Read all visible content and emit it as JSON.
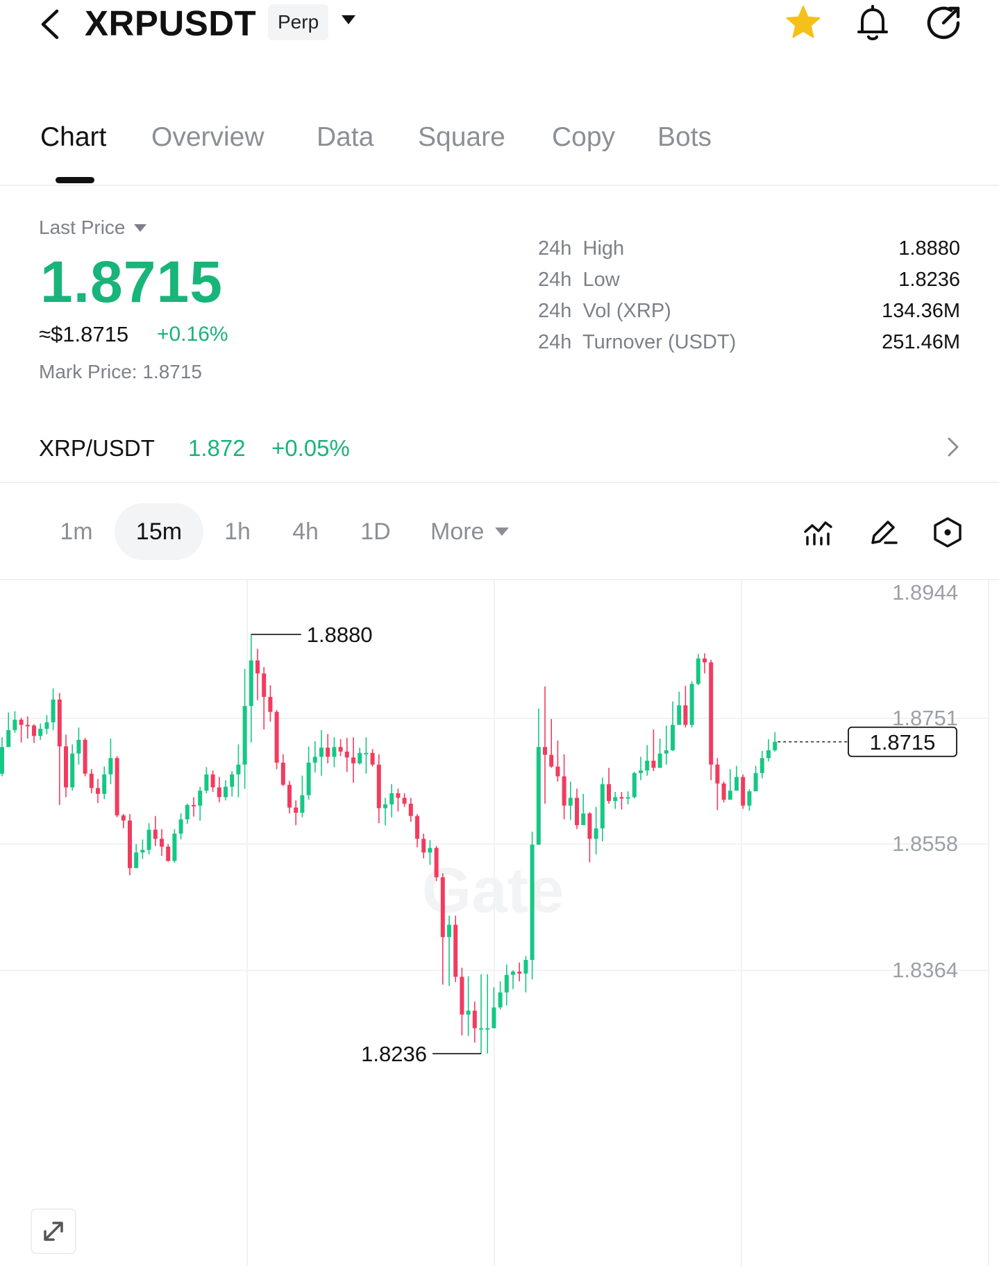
{
  "header": {
    "title": "XRPUSDT",
    "contract_type": "Perp",
    "icons": [
      "back-icon",
      "star-icon",
      "bell-icon",
      "share-icon"
    ],
    "favorite_color": "#f5c01a"
  },
  "tabs": [
    "Chart",
    "Overview",
    "Data",
    "Square",
    "Copy",
    "Bots"
  ],
  "active_tab": "Chart",
  "price": {
    "label": "Last Price",
    "last": "1.8715",
    "usd": "≈$1.8715",
    "change_pct": "+0.16%",
    "mark_label": "Mark Price:",
    "mark_value": "1.8715"
  },
  "stats": [
    {
      "label": "24h  High",
      "value": "1.8880"
    },
    {
      "label": "24h  Low",
      "value": "1.8236"
    },
    {
      "label": "24h  Vol (XRP)",
      "value": "134.36M"
    },
    {
      "label": "24h  Turnover (USDT)",
      "value": "251.46M"
    }
  ],
  "spot": {
    "pair": "XRP/USDT",
    "price": "1.872",
    "change": "+0.05%"
  },
  "intervals": [
    "1m",
    "15m",
    "1h",
    "4h",
    "1D"
  ],
  "active_interval": "15m",
  "more_label": "More",
  "toolbar_icons": [
    "indicator-icon",
    "draw-icon",
    "settings-icon"
  ],
  "colors": {
    "up": "#18b47a",
    "down": "#f0325a",
    "candle_up": "#16c784",
    "candle_down": "#f23b5f"
  },
  "watermark": "Gate",
  "chart_data": {
    "type": "candlestick",
    "y_ticks": [
      "1.8944",
      "1.8751",
      "1.8558",
      "1.8364"
    ],
    "y_tick_values": [
      1.8944,
      1.8751,
      1.8558,
      1.8364
    ],
    "current_price": "1.8715",
    "current_price_value": 1.8715,
    "high_label": "1.8880",
    "high_value": 1.888,
    "low_label": "1.8236",
    "low_value": 1.8236,
    "candles": [
      [
        1.8666,
        1.8707,
        1.8722,
        1.8662
      ],
      [
        1.8707,
        1.8733,
        1.876,
        1.8707
      ],
      [
        1.8733,
        1.8749,
        1.8762,
        1.8729
      ],
      [
        1.8749,
        1.8741,
        1.8752,
        1.8714
      ],
      [
        1.8741,
        1.874,
        1.8754,
        1.872
      ],
      [
        1.874,
        1.8724,
        1.8742,
        1.8713
      ],
      [
        1.8724,
        1.8735,
        1.8743,
        1.8718
      ],
      [
        1.8735,
        1.8745,
        1.8756,
        1.8727
      ],
      [
        1.8745,
        1.878,
        1.8797,
        1.8733
      ],
      [
        1.878,
        1.8708,
        1.879,
        1.8618
      ],
      [
        1.8708,
        1.8645,
        1.8726,
        1.863
      ],
      [
        1.8645,
        1.8697,
        1.8711,
        1.864
      ],
      [
        1.8697,
        1.8718,
        1.8737,
        1.868
      ],
      [
        1.8718,
        1.8666,
        1.8721,
        1.8662
      ],
      [
        1.8666,
        1.8644,
        1.8673,
        1.8636
      ],
      [
        1.8644,
        1.8635,
        1.8658,
        1.8621
      ],
      [
        1.8635,
        1.8665,
        1.8677,
        1.8627
      ],
      [
        1.8665,
        1.869,
        1.872,
        1.865
      ],
      [
        1.869,
        1.8602,
        1.8693,
        1.8599
      ],
      [
        1.8602,
        1.8594,
        1.8604,
        1.8582
      ],
      [
        1.8594,
        1.8521,
        1.8604,
        1.851
      ],
      [
        1.8521,
        1.8545,
        1.8558,
        1.8524
      ],
      [
        1.8545,
        1.8549,
        1.8565,
        1.8535
      ],
      [
        1.8549,
        1.858,
        1.859,
        1.8542
      ],
      [
        1.858,
        1.8566,
        1.8601,
        1.8555
      ],
      [
        1.8566,
        1.8554,
        1.8581,
        1.854
      ],
      [
        1.8554,
        1.8532,
        1.8558,
        1.8531
      ],
      [
        1.8532,
        1.8574,
        1.8581,
        1.8529
      ],
      [
        1.8574,
        1.8596,
        1.8605,
        1.8565
      ],
      [
        1.8596,
        1.8618,
        1.862,
        1.8589
      ],
      [
        1.8618,
        1.8617,
        1.863,
        1.86
      ],
      [
        1.8617,
        1.864,
        1.8646,
        1.8594
      ],
      [
        1.864,
        1.8665,
        1.8676,
        1.8636
      ],
      [
        1.8665,
        1.8645,
        1.8671,
        1.8638
      ],
      [
        1.8645,
        1.863,
        1.8661,
        1.8622
      ],
      [
        1.863,
        1.8646,
        1.8656,
        1.8625
      ],
      [
        1.8646,
        1.8665,
        1.867,
        1.8631
      ],
      [
        1.8665,
        1.868,
        1.8711,
        1.863
      ],
      [
        1.868,
        1.877,
        1.8827,
        1.8643
      ],
      [
        1.877,
        1.884,
        1.888,
        1.8714
      ],
      [
        1.884,
        1.882,
        1.8858,
        1.8779
      ],
      [
        1.882,
        1.8784,
        1.883,
        1.8734
      ],
      [
        1.8784,
        1.8761,
        1.8802,
        1.8746
      ],
      [
        1.8761,
        1.8683,
        1.8764,
        1.8673
      ],
      [
        1.8683,
        1.8649,
        1.8696,
        1.8647
      ],
      [
        1.8649,
        1.8614,
        1.8655,
        1.8605
      ],
      [
        1.8614,
        1.8606,
        1.8625,
        1.8587
      ],
      [
        1.8606,
        1.8633,
        1.8663,
        1.8599
      ],
      [
        1.8633,
        1.8683,
        1.8708,
        1.8626
      ],
      [
        1.8683,
        1.8692,
        1.8716,
        1.8668
      ],
      [
        1.8692,
        1.8706,
        1.8733,
        1.8663
      ],
      [
        1.8706,
        1.8692,
        1.8727,
        1.8682
      ],
      [
        1.8692,
        1.8707,
        1.8722,
        1.8676
      ],
      [
        1.8707,
        1.87,
        1.8719,
        1.8693
      ],
      [
        1.87,
        1.8691,
        1.8721,
        1.8669
      ],
      [
        1.8691,
        1.8682,
        1.8722,
        1.8652
      ],
      [
        1.8682,
        1.8698,
        1.8706,
        1.868
      ],
      [
        1.8698,
        1.8698,
        1.8722,
        1.8666
      ],
      [
        1.8698,
        1.868,
        1.8704,
        1.8677
      ],
      [
        1.868,
        1.8613,
        1.8696,
        1.859
      ],
      [
        1.8613,
        1.8619,
        1.8629,
        1.8587
      ],
      [
        1.8619,
        1.8636,
        1.865,
        1.8599
      ],
      [
        1.8636,
        1.8629,
        1.8643,
        1.8608
      ],
      [
        1.8629,
        1.862,
        1.8636,
        1.8615
      ],
      [
        1.862,
        1.8601,
        1.8629,
        1.8592
      ],
      [
        1.8601,
        1.8566,
        1.8604,
        1.8553
      ],
      [
        1.8566,
        1.8545,
        1.8574,
        1.8536
      ],
      [
        1.8545,
        1.8552,
        1.8564,
        1.8526
      ],
      [
        1.8552,
        1.8507,
        1.8555,
        1.8501
      ],
      [
        1.8507,
        1.8415,
        1.8513,
        1.8342
      ],
      [
        1.8415,
        1.8434,
        1.8448,
        1.834
      ],
      [
        1.8434,
        1.8354,
        1.8448,
        1.8346
      ],
      [
        1.8354,
        1.8296,
        1.8368,
        1.8264
      ],
      [
        1.8296,
        1.8302,
        1.8355,
        1.8263
      ],
      [
        1.8302,
        1.8275,
        1.8316,
        1.8253
      ],
      [
        1.8275,
        1.8275,
        1.8358,
        1.8236
      ],
      [
        1.8275,
        1.8275,
        1.8358,
        1.8236
      ],
      [
        1.8275,
        1.8307,
        1.8338,
        1.8275
      ],
      [
        1.8307,
        1.833,
        1.8347,
        1.8304
      ],
      [
        1.833,
        1.8357,
        1.8373,
        1.831
      ],
      [
        1.8357,
        1.8362,
        1.8364,
        1.8335
      ],
      [
        1.8362,
        1.8359,
        1.8376,
        1.8347
      ],
      [
        1.8359,
        1.838,
        1.8386,
        1.833
      ],
      [
        1.838,
        1.8557,
        1.8577,
        1.835
      ],
      [
        1.8557,
        1.8707,
        1.8766,
        1.8557
      ],
      [
        1.8707,
        1.8695,
        1.88,
        1.862
      ],
      [
        1.8695,
        1.8677,
        1.875,
        1.8675
      ],
      [
        1.8677,
        1.8662,
        1.8717,
        1.8654
      ],
      [
        1.8662,
        1.8617,
        1.8696,
        1.8596
      ],
      [
        1.8617,
        1.8629,
        1.8654,
        1.8595
      ],
      [
        1.8629,
        1.8587,
        1.8643,
        1.8581
      ],
      [
        1.8587,
        1.8605,
        1.8635,
        1.8602
      ],
      [
        1.8605,
        1.8566,
        1.8607,
        1.853
      ],
      [
        1.8566,
        1.8582,
        1.8615,
        1.8542
      ],
      [
        1.8582,
        1.865,
        1.866,
        1.8562
      ],
      [
        1.865,
        1.8624,
        1.8675,
        1.862
      ],
      [
        1.8624,
        1.863,
        1.8638,
        1.8612
      ],
      [
        1.863,
        1.8628,
        1.8638,
        1.8611
      ],
      [
        1.8628,
        1.863,
        1.8639,
        1.8619
      ],
      [
        1.863,
        1.8667,
        1.8669,
        1.8628
      ],
      [
        1.8667,
        1.8671,
        1.8692,
        1.8656
      ],
      [
        1.8671,
        1.8686,
        1.871,
        1.8663
      ],
      [
        1.8686,
        1.8675,
        1.8734,
        1.867
      ],
      [
        1.8675,
        1.8697,
        1.872,
        1.8675
      ],
      [
        1.8697,
        1.8702,
        1.874,
        1.868
      ],
      [
        1.8702,
        1.8741,
        1.8777,
        1.8701
      ],
      [
        1.8741,
        1.8771,
        1.8792,
        1.8751
      ],
      [
        1.8771,
        1.8741,
        1.8801,
        1.8737
      ],
      [
        1.8741,
        1.8804,
        1.8808,
        1.8737
      ],
      [
        1.8804,
        1.8843,
        1.885,
        1.8802
      ],
      [
        1.8843,
        1.8837,
        1.8851,
        1.882
      ],
      [
        1.8837,
        1.868,
        1.8841,
        1.8656
      ],
      [
        1.868,
        1.8651,
        1.869,
        1.861
      ],
      [
        1.8651,
        1.8626,
        1.8654,
        1.8622
      ],
      [
        1.8626,
        1.864,
        1.8673,
        1.8631
      ],
      [
        1.864,
        1.8661,
        1.8678,
        1.864
      ],
      [
        1.8661,
        1.8617,
        1.8665,
        1.8612
      ],
      [
        1.8617,
        1.8639,
        1.8642,
        1.8609
      ],
      [
        1.8639,
        1.8667,
        1.8678,
        1.8643
      ],
      [
        1.8667,
        1.869,
        1.8701,
        1.8659
      ],
      [
        1.869,
        1.8702,
        1.8719,
        1.8685
      ],
      [
        1.8702,
        1.8715,
        1.873,
        1.87
      ]
    ]
  }
}
